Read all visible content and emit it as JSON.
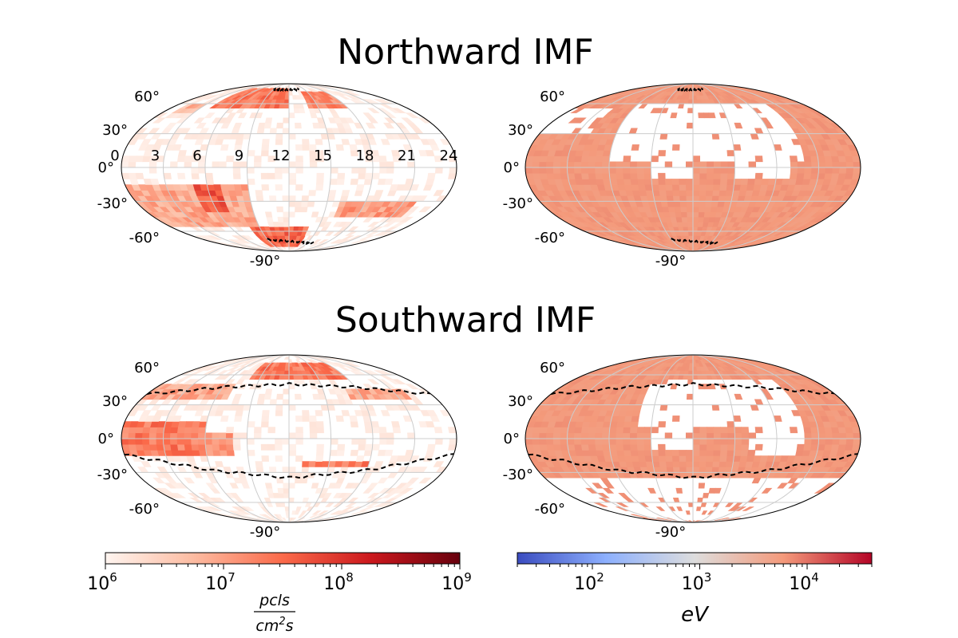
{
  "figure": {
    "titles": [
      "Northward IMF",
      "Southward IMF"
    ]
  },
  "chart_data": [
    {
      "type": "heatmap",
      "projection": "mollweide",
      "panel": "northward-flux",
      "colormap": "Reds",
      "lat_tick_labels": [
        "60°",
        "30°",
        "0°",
        "-30°",
        "-60°",
        "-90°"
      ],
      "lon_tick_labels": [
        "0",
        "3",
        "6",
        "9",
        "12",
        "15",
        "18",
        "21",
        "24"
      ],
      "grid": true,
      "regions": [
        {
          "lon": [
            4,
            12
          ],
          "lat": [
            55,
            80
          ],
          "level": 0.45
        },
        {
          "lon": [
            14,
            18
          ],
          "lat": [
            55,
            75
          ],
          "level": 0.4
        },
        {
          "lon": [
            1,
            3
          ],
          "lat": [
            50,
            60
          ],
          "level": 0.25
        },
        {
          "lon": [
            0,
            9
          ],
          "lat": [
            -55,
            -15
          ],
          "level": 0.3
        },
        {
          "lon": [
            5,
            7
          ],
          "lat": [
            -40,
            -15
          ],
          "level": 0.55
        },
        {
          "lon": [
            8,
            14
          ],
          "lat": [
            -80,
            -55
          ],
          "level": 0.5
        },
        {
          "lon": [
            16,
            22
          ],
          "lat": [
            -45,
            -30
          ],
          "level": 0.35
        }
      ],
      "boundary": [
        {
          "lon": [
            9,
            14
          ],
          "lat": [
            78,
            78
          ]
        },
        {
          "lon": [
            9,
            16
          ],
          "lat": [
            -70,
            -75
          ]
        }
      ]
    },
    {
      "type": "heatmap",
      "projection": "mollweide",
      "panel": "northward-energy",
      "colormap": "coolwarm",
      "lat_tick_labels": [
        "60°",
        "30°",
        "0°",
        "-30°",
        "-60°",
        "-90°"
      ],
      "grid": true,
      "fill_level": 0.75,
      "empty_regions": [
        {
          "lon": [
            6,
            20
          ],
          "lat": [
            5,
            60
          ]
        },
        {
          "lon": [
            9,
            12
          ],
          "lat": [
            -10,
            5
          ]
        },
        {
          "lon": [
            15,
            19
          ],
          "lat": [
            -10,
            5
          ]
        },
        {
          "lon": [
            0,
            4
          ],
          "lat": [
            30,
            55
          ]
        }
      ],
      "boundary": [
        {
          "lon": [
            9,
            14
          ],
          "lat": [
            78,
            78
          ]
        },
        {
          "lon": [
            9,
            16
          ],
          "lat": [
            -70,
            -75
          ]
        }
      ]
    },
    {
      "type": "heatmap",
      "projection": "mollweide",
      "panel": "southward-flux",
      "colormap": "Reds",
      "lat_tick_labels": [
        "60°",
        "30°",
        "0°",
        "-30°",
        "-60°",
        "-90°"
      ],
      "grid": true,
      "regions": [
        {
          "lon": [
            8,
            18
          ],
          "lat": [
            55,
            75
          ],
          "level": 0.45
        },
        {
          "lon": [
            0,
            7
          ],
          "lat": [
            35,
            50
          ],
          "level": 0.3
        },
        {
          "lon": [
            17,
            22
          ],
          "lat": [
            35,
            45
          ],
          "level": 0.3
        },
        {
          "lon": [
            0,
            6
          ],
          "lat": [
            -15,
            15
          ],
          "level": 0.45
        },
        {
          "lon": [
            5,
            8
          ],
          "lat": [
            -15,
            5
          ],
          "level": 0.35
        },
        {
          "lon": [
            13,
            18
          ],
          "lat": [
            -25,
            -20
          ],
          "level": 0.45
        }
      ],
      "boundary": [
        {
          "lon": [
            0,
            6,
            12,
            18,
            24
          ],
          "lat": [
            40,
            47,
            50,
            47,
            40
          ]
        },
        {
          "lon": [
            0,
            6,
            12,
            18,
            24
          ],
          "lat": [
            -14,
            -28,
            -35,
            -28,
            -14
          ]
        }
      ]
    },
    {
      "type": "heatmap",
      "projection": "mollweide",
      "panel": "southward-energy",
      "colormap": "coolwarm",
      "lat_tick_labels": [
        "60°",
        "30°",
        "0°",
        "-30°",
        "-60°",
        "-90°"
      ],
      "grid": true,
      "fill_level": 0.75,
      "empty_regions": [
        {
          "lon": [
            8,
            20
          ],
          "lat": [
            10,
            55
          ]
        },
        {
          "lon": [
            9,
            12
          ],
          "lat": [
            -10,
            10
          ]
        },
        {
          "lon": [
            16,
            20
          ],
          "lat": [
            -15,
            10
          ]
        },
        {
          "lon": [
            0,
            24
          ],
          "lat": [
            -90,
            -35
          ]
        }
      ],
      "boundary": [
        {
          "lon": [
            0,
            6,
            12,
            18,
            24
          ],
          "lat": [
            40,
            47,
            50,
            47,
            40
          ]
        },
        {
          "lon": [
            0,
            6,
            12,
            18,
            24
          ],
          "lat": [
            -14,
            -28,
            -35,
            -28,
            -14
          ]
        }
      ]
    }
  ],
  "colorbars": [
    {
      "name": "flux",
      "colormap": "Reds",
      "scale": "log",
      "range": [
        1000000,
        1000000000
      ],
      "tick_labels": [
        {
          "base": "10",
          "exp": "6"
        },
        {
          "base": "10",
          "exp": "7"
        },
        {
          "base": "10",
          "exp": "8"
        },
        {
          "base": "10",
          "exp": "9"
        }
      ],
      "label_numerator": "pcls",
      "label_denominator_a": "cm",
      "label_denominator_exp": "2",
      "label_denominator_b": "s"
    },
    {
      "name": "energy",
      "colormap": "coolwarm",
      "scale": "log",
      "range": [
        20,
        40000
      ],
      "tick_labels": [
        {
          "base": "10",
          "exp": "2"
        },
        {
          "base": "10",
          "exp": "3"
        },
        {
          "base": "10",
          "exp": "4"
        }
      ],
      "label": "eV"
    }
  ],
  "colors": {
    "grid": "#cccccc",
    "outline": "#000000",
    "boundary": "#000000",
    "energy_fill": "#ee9a7a"
  }
}
